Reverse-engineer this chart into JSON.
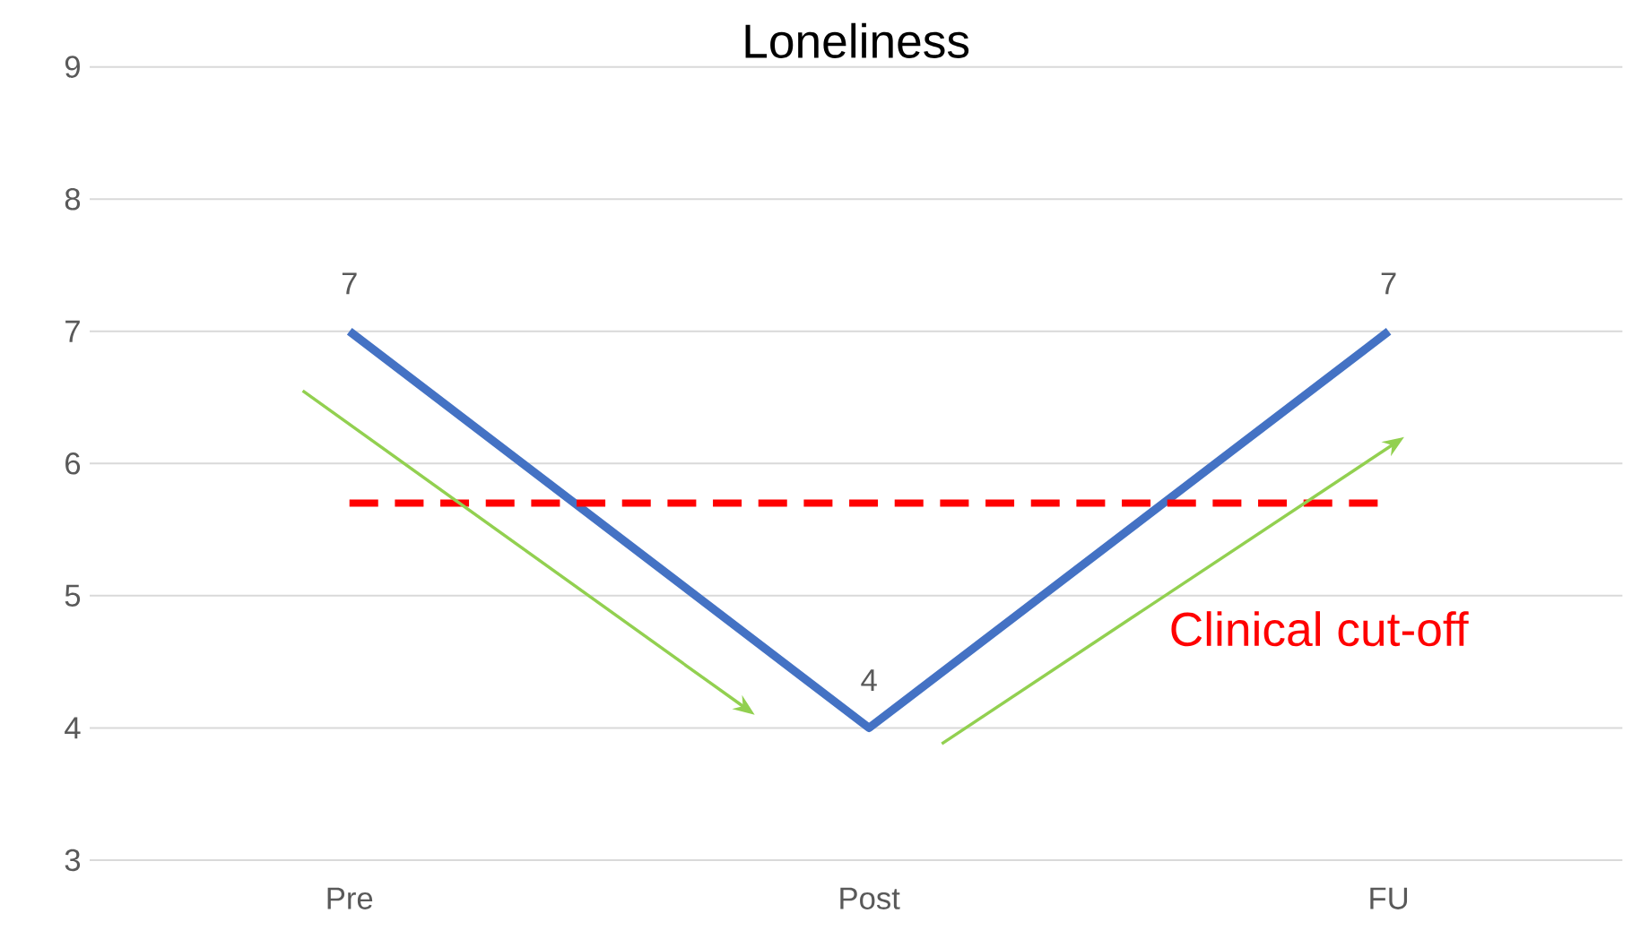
{
  "chart_data": {
    "type": "line",
    "title": "Loneliness",
    "categories": [
      "Pre",
      "Post",
      "FU"
    ],
    "series": [
      {
        "color": "#4472c4",
        "values": [
          7,
          4,
          7
        ]
      }
    ],
    "data_labels": true,
    "ylim": [
      3,
      9
    ],
    "yticks": [
      3,
      4,
      5,
      6,
      7,
      8,
      9
    ],
    "grid": "y",
    "marker": "none",
    "line_style": "solid",
    "ref_lines": [
      {
        "axis": "y",
        "value": 5.7,
        "label": "Clinical cut-off",
        "color": "#ff0000",
        "line_style": "dashed"
      }
    ]
  }
}
